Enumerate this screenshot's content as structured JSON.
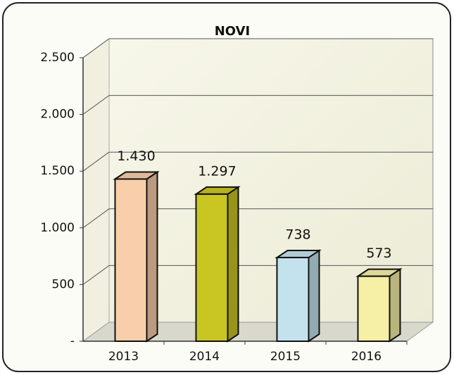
{
  "chart_data": {
    "type": "bar3d",
    "title": "NOVI",
    "categories": [
      "2013",
      "2014",
      "2015",
      "2016"
    ],
    "values": [
      1430,
      1297,
      738,
      573
    ],
    "value_labels": [
      "1.430",
      "1.297",
      "738",
      "573"
    ],
    "colors": [
      "#f8cfaa",
      "#c9c522",
      "#c4e2ee",
      "#f5f0a6"
    ],
    "ylim": [
      0,
      2500
    ],
    "yticks": [
      {
        "value": 0,
        "label": "-"
      },
      500,
      {
        "value": 1000,
        "label": "1.000"
      },
      {
        "value": 1500,
        "label": "1.500"
      },
      {
        "value": 2000,
        "label": "2.000"
      },
      {
        "value": 2500,
        "label": "2.500"
      }
    ],
    "grid": true
  }
}
